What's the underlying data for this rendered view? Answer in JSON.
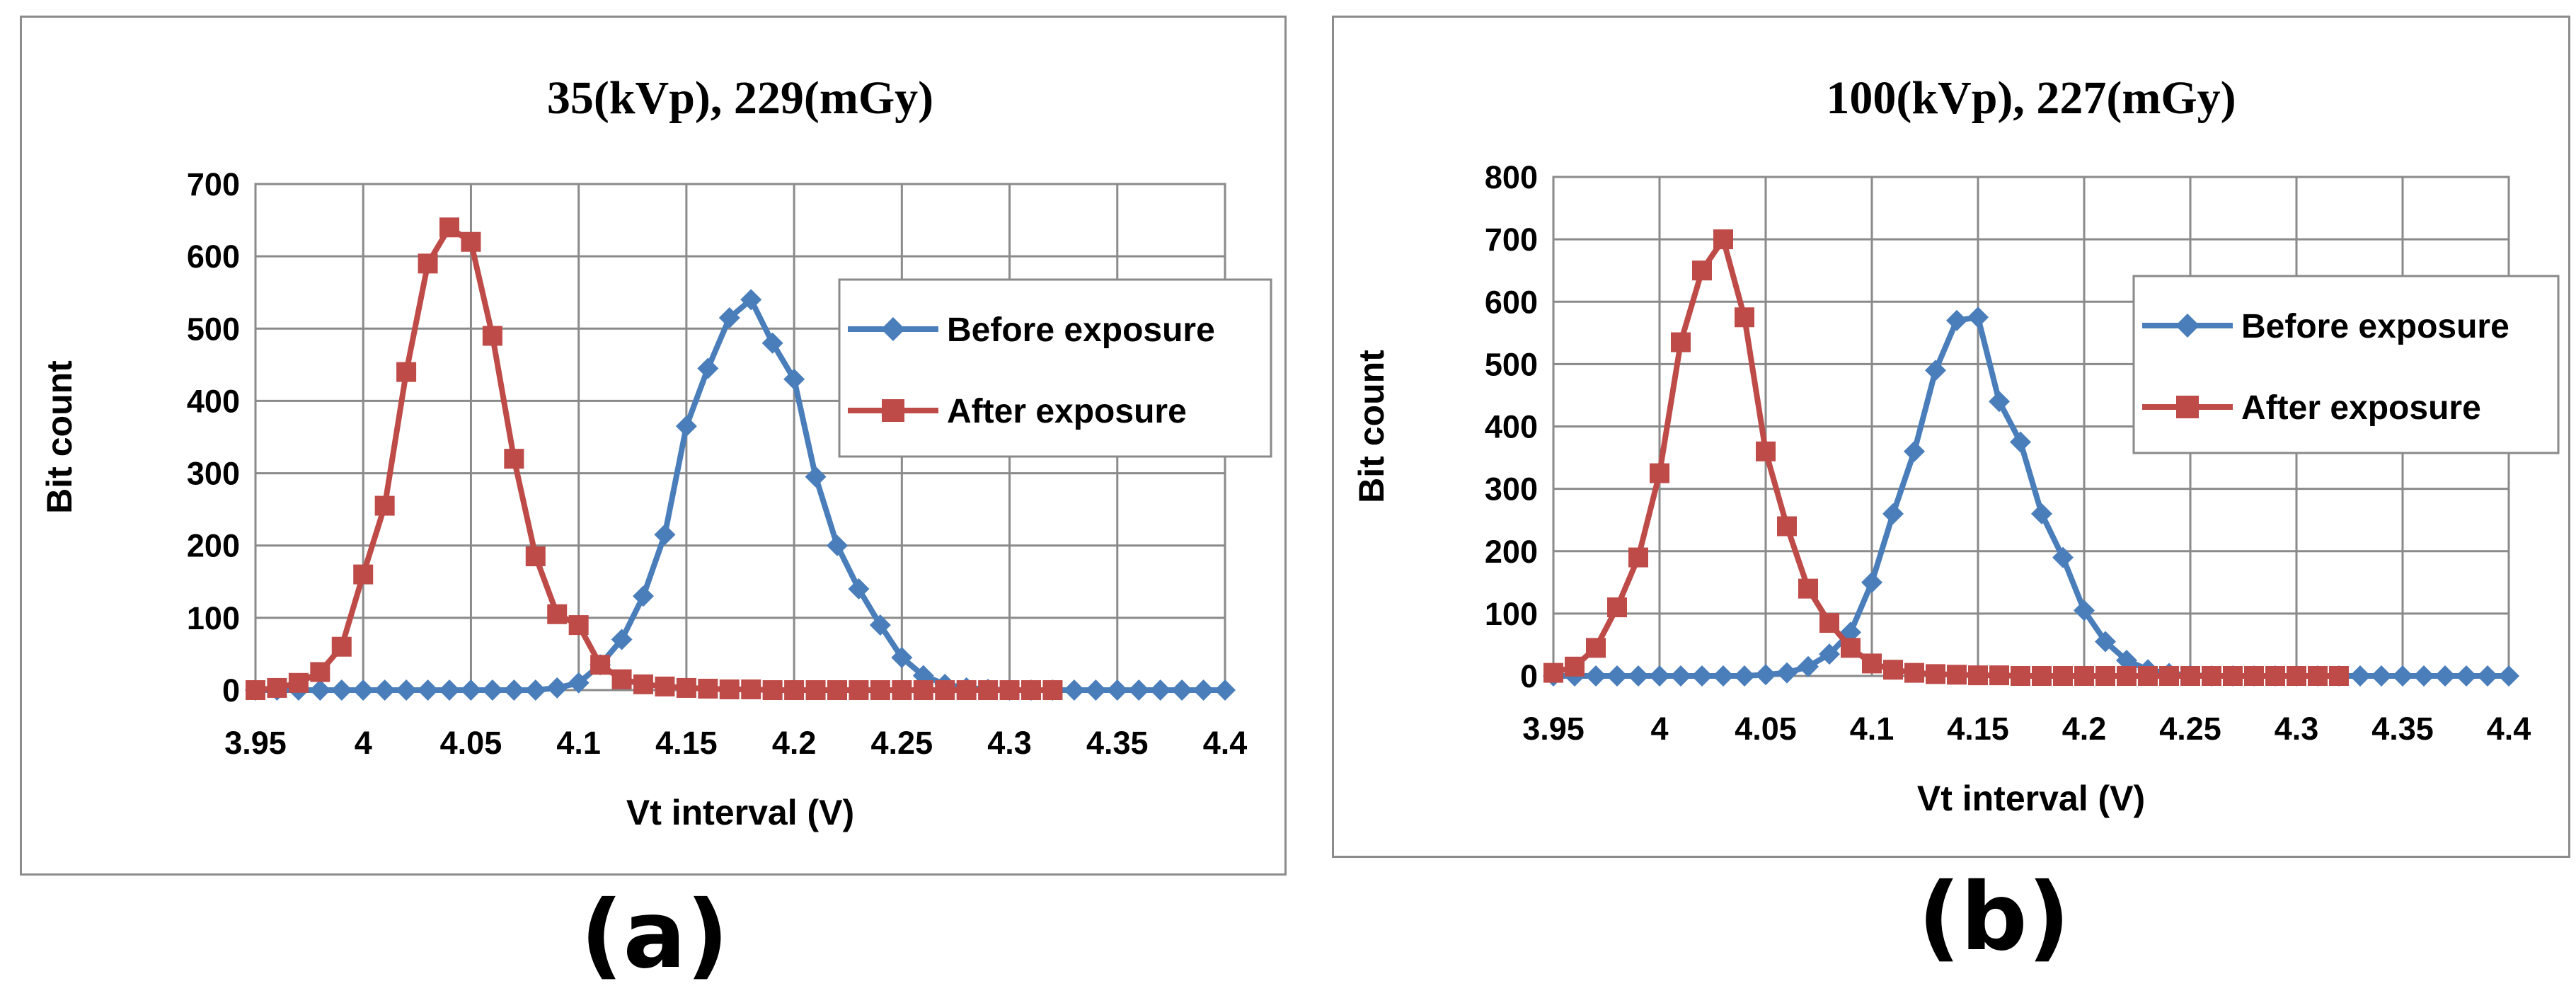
{
  "chart_data": [
    {
      "type": "line",
      "panel_label": "(a)",
      "title": "35(kVp), 229(mGy)",
      "xlabel": "Vt interval (V)",
      "ylabel": "Bit count",
      "xlim": [
        3.95,
        4.4
      ],
      "ylim": [
        0,
        700
      ],
      "y_step": 100,
      "x_ticks": [
        "3.95",
        "4",
        "4.05",
        "4.1",
        "4.15",
        "4.2",
        "4.25",
        "4.3",
        "4.35",
        "4.4"
      ],
      "grid": true,
      "legend_position": "right",
      "series": [
        {
          "name": "Before exposure",
          "color": "#4a7ebb",
          "marker": "diamond",
          "x": [
            3.95,
            3.96,
            3.97,
            3.98,
            3.99,
            4.0,
            4.01,
            4.02,
            4.03,
            4.04,
            4.05,
            4.06,
            4.07,
            4.08,
            4.09,
            4.1,
            4.11,
            4.12,
            4.13,
            4.14,
            4.15,
            4.16,
            4.17,
            4.18,
            4.19,
            4.2,
            4.21,
            4.22,
            4.23,
            4.24,
            4.25,
            4.26,
            4.27,
            4.28,
            4.29,
            4.3,
            4.31,
            4.32,
            4.33,
            4.34,
            4.35,
            4.36,
            4.37,
            4.38,
            4.39,
            4.4
          ],
          "values": [
            0,
            0,
            0,
            0,
            0,
            0,
            0,
            0,
            0,
            0,
            0,
            0,
            0,
            0,
            3,
            10,
            35,
            70,
            130,
            215,
            365,
            445,
            515,
            540,
            480,
            430,
            295,
            200,
            140,
            90,
            45,
            20,
            8,
            3,
            1,
            0,
            0,
            0,
            0,
            0,
            0,
            0,
            0,
            0,
            0,
            0
          ]
        },
        {
          "name": "After exposure",
          "color": "#be4b48",
          "marker": "square",
          "x": [
            3.95,
            3.96,
            3.97,
            3.98,
            3.99,
            4.0,
            4.01,
            4.02,
            4.03,
            4.04,
            4.05,
            4.06,
            4.07,
            4.08,
            4.09,
            4.1,
            4.11,
            4.12,
            4.13,
            4.14,
            4.15,
            4.16,
            4.17,
            4.18,
            4.19,
            4.2,
            4.21,
            4.22,
            4.23,
            4.24,
            4.25,
            4.26,
            4.27,
            4.28,
            4.29,
            4.3,
            4.31,
            4.32
          ],
          "values": [
            0,
            3,
            10,
            25,
            60,
            160,
            255,
            440,
            590,
            640,
            620,
            490,
            320,
            185,
            105,
            90,
            35,
            15,
            8,
            5,
            3,
            2,
            1,
            1,
            0,
            0,
            0,
            0,
            0,
            0,
            0,
            0,
            0,
            0,
            0,
            0,
            0,
            0
          ]
        }
      ]
    },
    {
      "type": "line",
      "panel_label": "(b)",
      "title": "100(kVp), 227(mGy)",
      "xlabel": "Vt interval (V)",
      "ylabel": "Bit count",
      "xlim": [
        3.95,
        4.4
      ],
      "ylim": [
        0,
        800
      ],
      "y_step": 100,
      "x_ticks": [
        "3.95",
        "4",
        "4.05",
        "4.1",
        "4.15",
        "4.2",
        "4.25",
        "4.3",
        "4.35",
        "4.4"
      ],
      "grid": true,
      "legend_position": "right",
      "series": [
        {
          "name": "Before exposure",
          "color": "#4a7ebb",
          "marker": "diamond",
          "x": [
            3.95,
            3.96,
            3.97,
            3.98,
            3.99,
            4.0,
            4.01,
            4.02,
            4.03,
            4.04,
            4.05,
            4.06,
            4.07,
            4.08,
            4.09,
            4.1,
            4.11,
            4.12,
            4.13,
            4.14,
            4.15,
            4.16,
            4.17,
            4.18,
            4.19,
            4.2,
            4.21,
            4.22,
            4.23,
            4.24,
            4.25,
            4.26,
            4.27,
            4.28,
            4.29,
            4.3,
            4.31,
            4.32,
            4.33,
            4.34,
            4.35,
            4.36,
            4.37,
            4.38,
            4.39,
            4.4
          ],
          "values": [
            0,
            0,
            0,
            0,
            0,
            0,
            0,
            0,
            0,
            0,
            2,
            5,
            15,
            35,
            70,
            150,
            260,
            360,
            490,
            570,
            575,
            440,
            375,
            260,
            190,
            105,
            55,
            25,
            10,
            4,
            1,
            0,
            0,
            0,
            0,
            0,
            0,
            0,
            0,
            0,
            0,
            0,
            0,
            0,
            0,
            0
          ]
        },
        {
          "name": "After exposure",
          "color": "#be4b48",
          "marker": "square",
          "x": [
            3.95,
            3.96,
            3.97,
            3.98,
            3.99,
            4.0,
            4.01,
            4.02,
            4.03,
            4.04,
            4.05,
            4.06,
            4.07,
            4.08,
            4.09,
            4.1,
            4.11,
            4.12,
            4.13,
            4.14,
            4.15,
            4.16,
            4.17,
            4.18,
            4.19,
            4.2,
            4.21,
            4.22,
            4.23,
            4.24,
            4.25,
            4.26,
            4.27,
            4.28,
            4.29,
            4.3,
            4.31,
            4.32
          ],
          "values": [
            5,
            15,
            45,
            110,
            190,
            325,
            535,
            650,
            700,
            575,
            360,
            240,
            140,
            85,
            45,
            20,
            10,
            5,
            3,
            2,
            1,
            1,
            0,
            0,
            0,
            0,
            0,
            0,
            0,
            0,
            0,
            0,
            0,
            0,
            0,
            0,
            0,
            0
          ]
        }
      ]
    }
  ]
}
